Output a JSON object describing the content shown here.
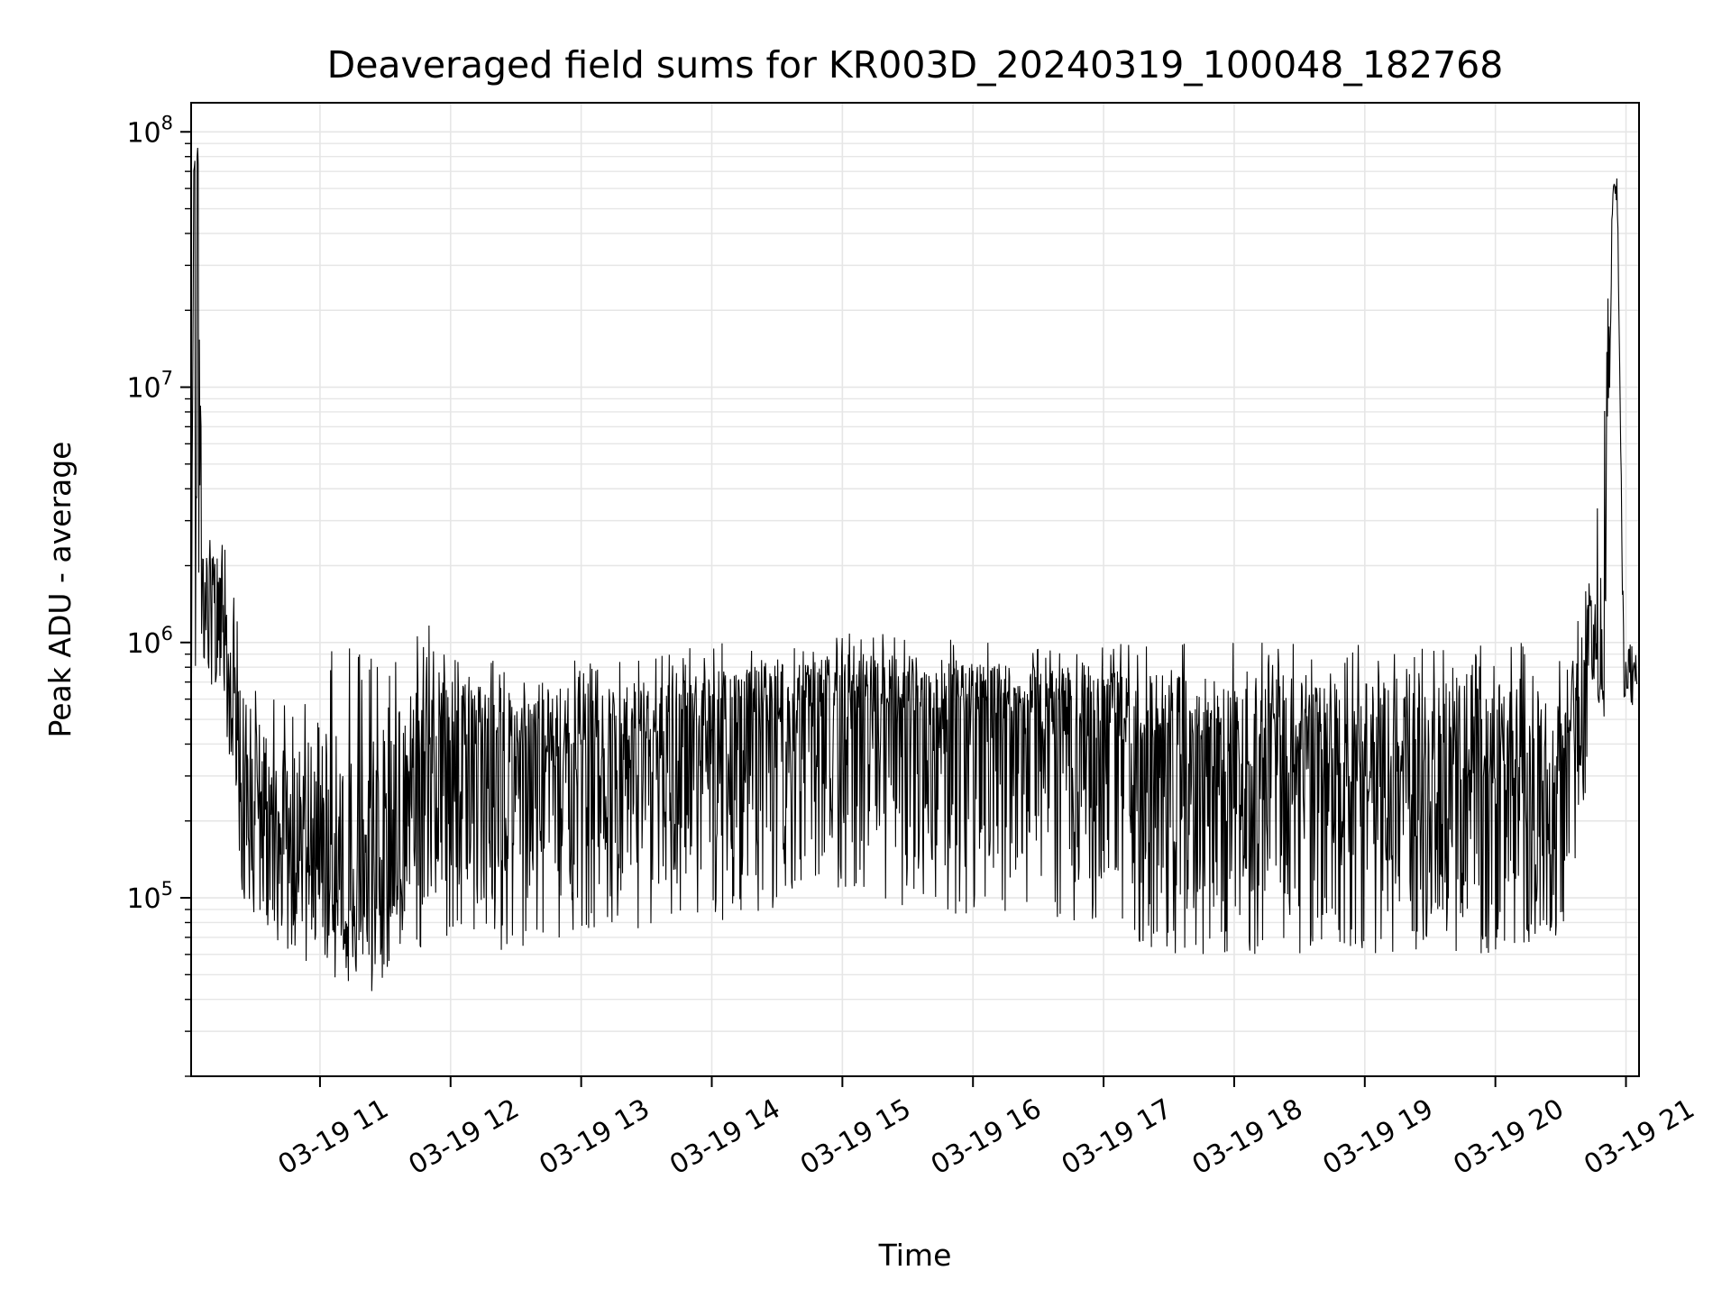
{
  "chart_data": {
    "type": "line",
    "title": "Deaveraged field sums for KR003D_20240319_100048_182768",
    "xlabel": "Time",
    "ylabel": "Peak ADU - average",
    "yscale": "log",
    "grid": true,
    "xlim": [
      "2024-03-19 10:00:48",
      "2024-03-19 21:06:00"
    ],
    "ylim": [
      20000,
      130000000
    ],
    "x_ticks": [
      "03-19 11",
      "03-19 12",
      "03-19 13",
      "03-19 14",
      "03-19 15",
      "03-19 16",
      "03-19 17",
      "03-19 18",
      "03-19 19",
      "03-19 20",
      "03-19 21"
    ],
    "y_ticks": [
      {
        "value": 100000,
        "base": "10",
        "exp": "5"
      },
      {
        "value": 1000000,
        "base": "10",
        "exp": "6"
      },
      {
        "value": 10000000,
        "base": "10",
        "exp": "7"
      },
      {
        "value": 100000000,
        "base": "10",
        "exp": "8"
      }
    ],
    "series": [
      {
        "color": "#000000",
        "x": [
          "2024-03-19 10:01",
          "2024-03-19 10:02",
          "2024-03-19 10:04",
          "2024-03-19 10:06",
          "2024-03-19 10:08",
          "2024-03-19 10:15",
          "2024-03-19 10:20",
          "2024-03-19 10:25",
          "2024-03-19 10:30",
          "2024-03-19 10:40",
          "2024-03-19 10:50",
          "2024-03-19 11:00",
          "2024-03-19 11:10",
          "2024-03-19 11:20",
          "2024-03-19 11:30",
          "2024-03-19 11:40",
          "2024-03-19 11:50",
          "2024-03-19 12:00",
          "2024-03-19 12:30",
          "2024-03-19 13:00",
          "2024-03-19 13:30",
          "2024-03-19 14:00",
          "2024-03-19 14:30",
          "2024-03-19 15:00",
          "2024-03-19 15:30",
          "2024-03-19 16:00",
          "2024-03-19 16:30",
          "2024-03-19 17:00",
          "2024-03-19 17:30",
          "2024-03-19 18:00",
          "2024-03-19 18:30",
          "2024-03-19 19:00",
          "2024-03-19 19:30",
          "2024-03-19 20:00",
          "2024-03-19 20:30",
          "2024-03-19 20:40",
          "2024-03-19 20:45",
          "2024-03-19 20:50",
          "2024-03-19 20:54",
          "2024-03-19 20:56",
          "2024-03-19 20:59",
          "2024-03-19 21:02",
          "2024-03-19 21:05"
        ],
        "y": [
          1000000,
          70000000,
          85000000,
          1200000,
          1500000,
          1800000,
          400000,
          180000,
          200000,
          150000,
          160000,
          120000,
          100000,
          90000,
          130000,
          250000,
          350000,
          400000,
          350000,
          380000,
          400000,
          450000,
          500000,
          600000,
          550000,
          560000,
          520000,
          480000,
          380000,
          330000,
          310000,
          300000,
          320000,
          290000,
          300000,
          600000,
          1000000,
          700000,
          65000000,
          60000000,
          700000,
          650000,
          800000
        ],
        "y_spread_low": [
          700000,
          700000,
          700000,
          700000,
          700000,
          500000,
          200000,
          80000,
          70000,
          65000,
          60000,
          50000,
          45000,
          40000,
          45000,
          60000,
          65000,
          70000,
          60000,
          70000,
          75000,
          80000,
          90000,
          110000,
          90000,
          85000,
          80000,
          75000,
          60000,
          60000,
          60000,
          60000,
          60000,
          60000,
          70000,
          180000,
          600000,
          450000,
          55000000,
          50000000,
          550000,
          500000,
          600000
        ],
        "y_spread_high": [
          2000000,
          75000000,
          90000000,
          2500000,
          2500000,
          2700000,
          2000000,
          700000,
          650000,
          600000,
          700000,
          900000,
          1000000,
          900000,
          1000000,
          1000000,
          1200000,
          900000,
          850000,
          850000,
          900000,
          1000000,
          1000000,
          1100000,
          1100000,
          1000000,
          1000000,
          1000000,
          1000000,
          1000000,
          1000000,
          1000000,
          1000000,
          1000000,
          1000000,
          1500000,
          2500000,
          10000000,
          70000000,
          68000000,
          1200000,
          1300000,
          1400000
        ]
      }
    ]
  }
}
